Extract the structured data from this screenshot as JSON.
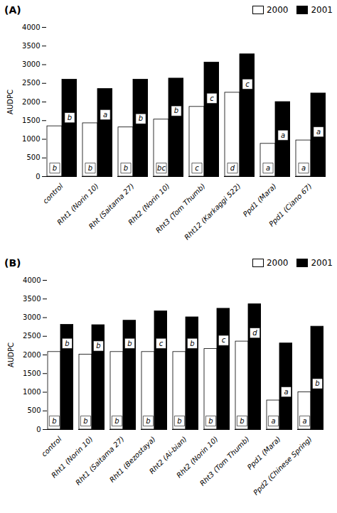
{
  "chart_data": [
    {
      "type": "bar",
      "title": "(A)",
      "categories": [
        "control",
        "Rht1 (Norin 10)",
        "Rht (Saitama 27)",
        "Rht2 (Norin 10)",
        "Rht3 (Tom Thumb)",
        "Rht12 (Karkaggi 522)",
        "Ppd1 (Mara)",
        "Ppd1 (Ciano 67)"
      ],
      "series": [
        {
          "name": "2000",
          "color": "white",
          "values": [
            1350,
            1430,
            1320,
            1530,
            1870,
            2250,
            880,
            970
          ],
          "labels": [
            "b",
            "b",
            "b",
            "bc",
            "c",
            "d",
            "a",
            "a"
          ]
        },
        {
          "name": "2001",
          "color": "black",
          "values": [
            2600,
            2350,
            2600,
            2630,
            3060,
            3280,
            2000,
            2230
          ],
          "labels": [
            "b",
            "a",
            "b",
            "b",
            "c",
            "c",
            "a",
            "a"
          ]
        }
      ],
      "ylabel": "AUDPC",
      "ylim": [
        0,
        4000
      ],
      "yticks": [
        0,
        500,
        1000,
        1500,
        2000,
        2500,
        3000,
        3500,
        4000
      ],
      "legend": "upper right",
      "grid": false
    },
    {
      "type": "bar",
      "title": "(B)",
      "categories": [
        "control",
        "Rht1 (Norin 10)",
        "Rht1 (Saitama 27)",
        "Rht1 (Bezostaya)",
        "Rht2 (Ai-bian)",
        "Rht2 (Norin 10)",
        "Rht3 (Tom Thumb)",
        "Ppd1 (Mara)",
        "Ppd2 (Chinese Spring)"
      ],
      "series": [
        {
          "name": "2000",
          "color": "white",
          "values": [
            2080,
            2010,
            2080,
            2080,
            2080,
            2160,
            2360,
            780,
            1000
          ],
          "labels": [
            "b",
            "b",
            "b",
            "b",
            "b",
            "b",
            "b",
            "a",
            "a"
          ]
        },
        {
          "name": "2001",
          "color": "black",
          "values": [
            2810,
            2800,
            2920,
            3170,
            3010,
            3240,
            3360,
            2310,
            2760
          ],
          "labels": [
            "b",
            "b",
            "b",
            "c",
            "b",
            "c",
            "d",
            "a",
            "b"
          ]
        }
      ],
      "ylabel": "AUDPC",
      "ylim": [
        0,
        4000
      ],
      "yticks": [
        0,
        500,
        1000,
        1500,
        2000,
        2500,
        3000,
        3500,
        4000
      ],
      "legend": "upper right",
      "grid": false
    }
  ]
}
